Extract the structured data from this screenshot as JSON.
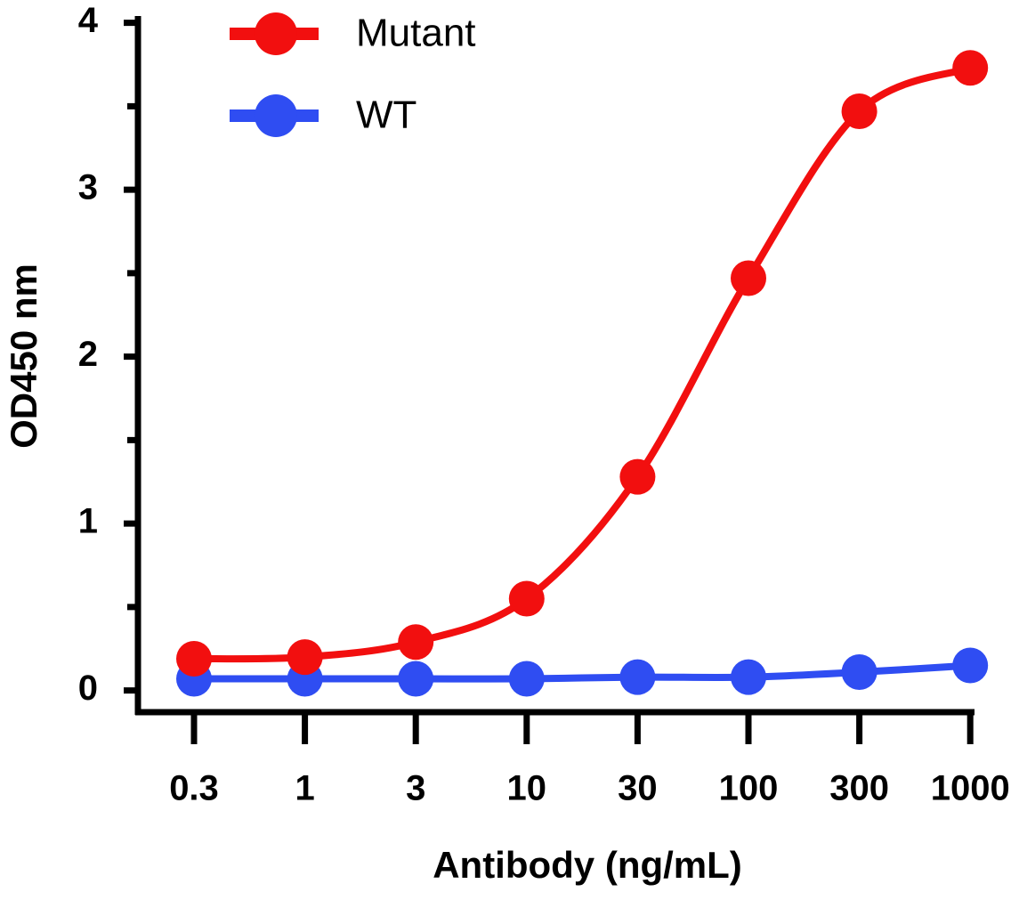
{
  "chart_data": {
    "type": "line",
    "categories": [
      "0.3",
      "1",
      "3",
      "10",
      "30",
      "100",
      "300",
      "1000"
    ],
    "series": [
      {
        "name": "Mutant",
        "color": "#f20f0f",
        "values": [
          0.19,
          0.2,
          0.29,
          0.55,
          1.28,
          2.47,
          3.47,
          3.73
        ]
      },
      {
        "name": "WT",
        "color": "#2f4df2",
        "values": [
          0.07,
          0.07,
          0.07,
          0.07,
          0.08,
          0.08,
          0.11,
          0.15
        ]
      }
    ],
    "x_label": "Antibody (ng/mL)",
    "y_label": "OD450 nm",
    "ylim": [
      -0.13,
      4.03
    ],
    "yticks": [
      0,
      1,
      2,
      3,
      4
    ],
    "yminorticks": [
      0.5,
      1.5,
      2.5,
      3.5
    ],
    "legend": "upper-left",
    "grid": false
  }
}
